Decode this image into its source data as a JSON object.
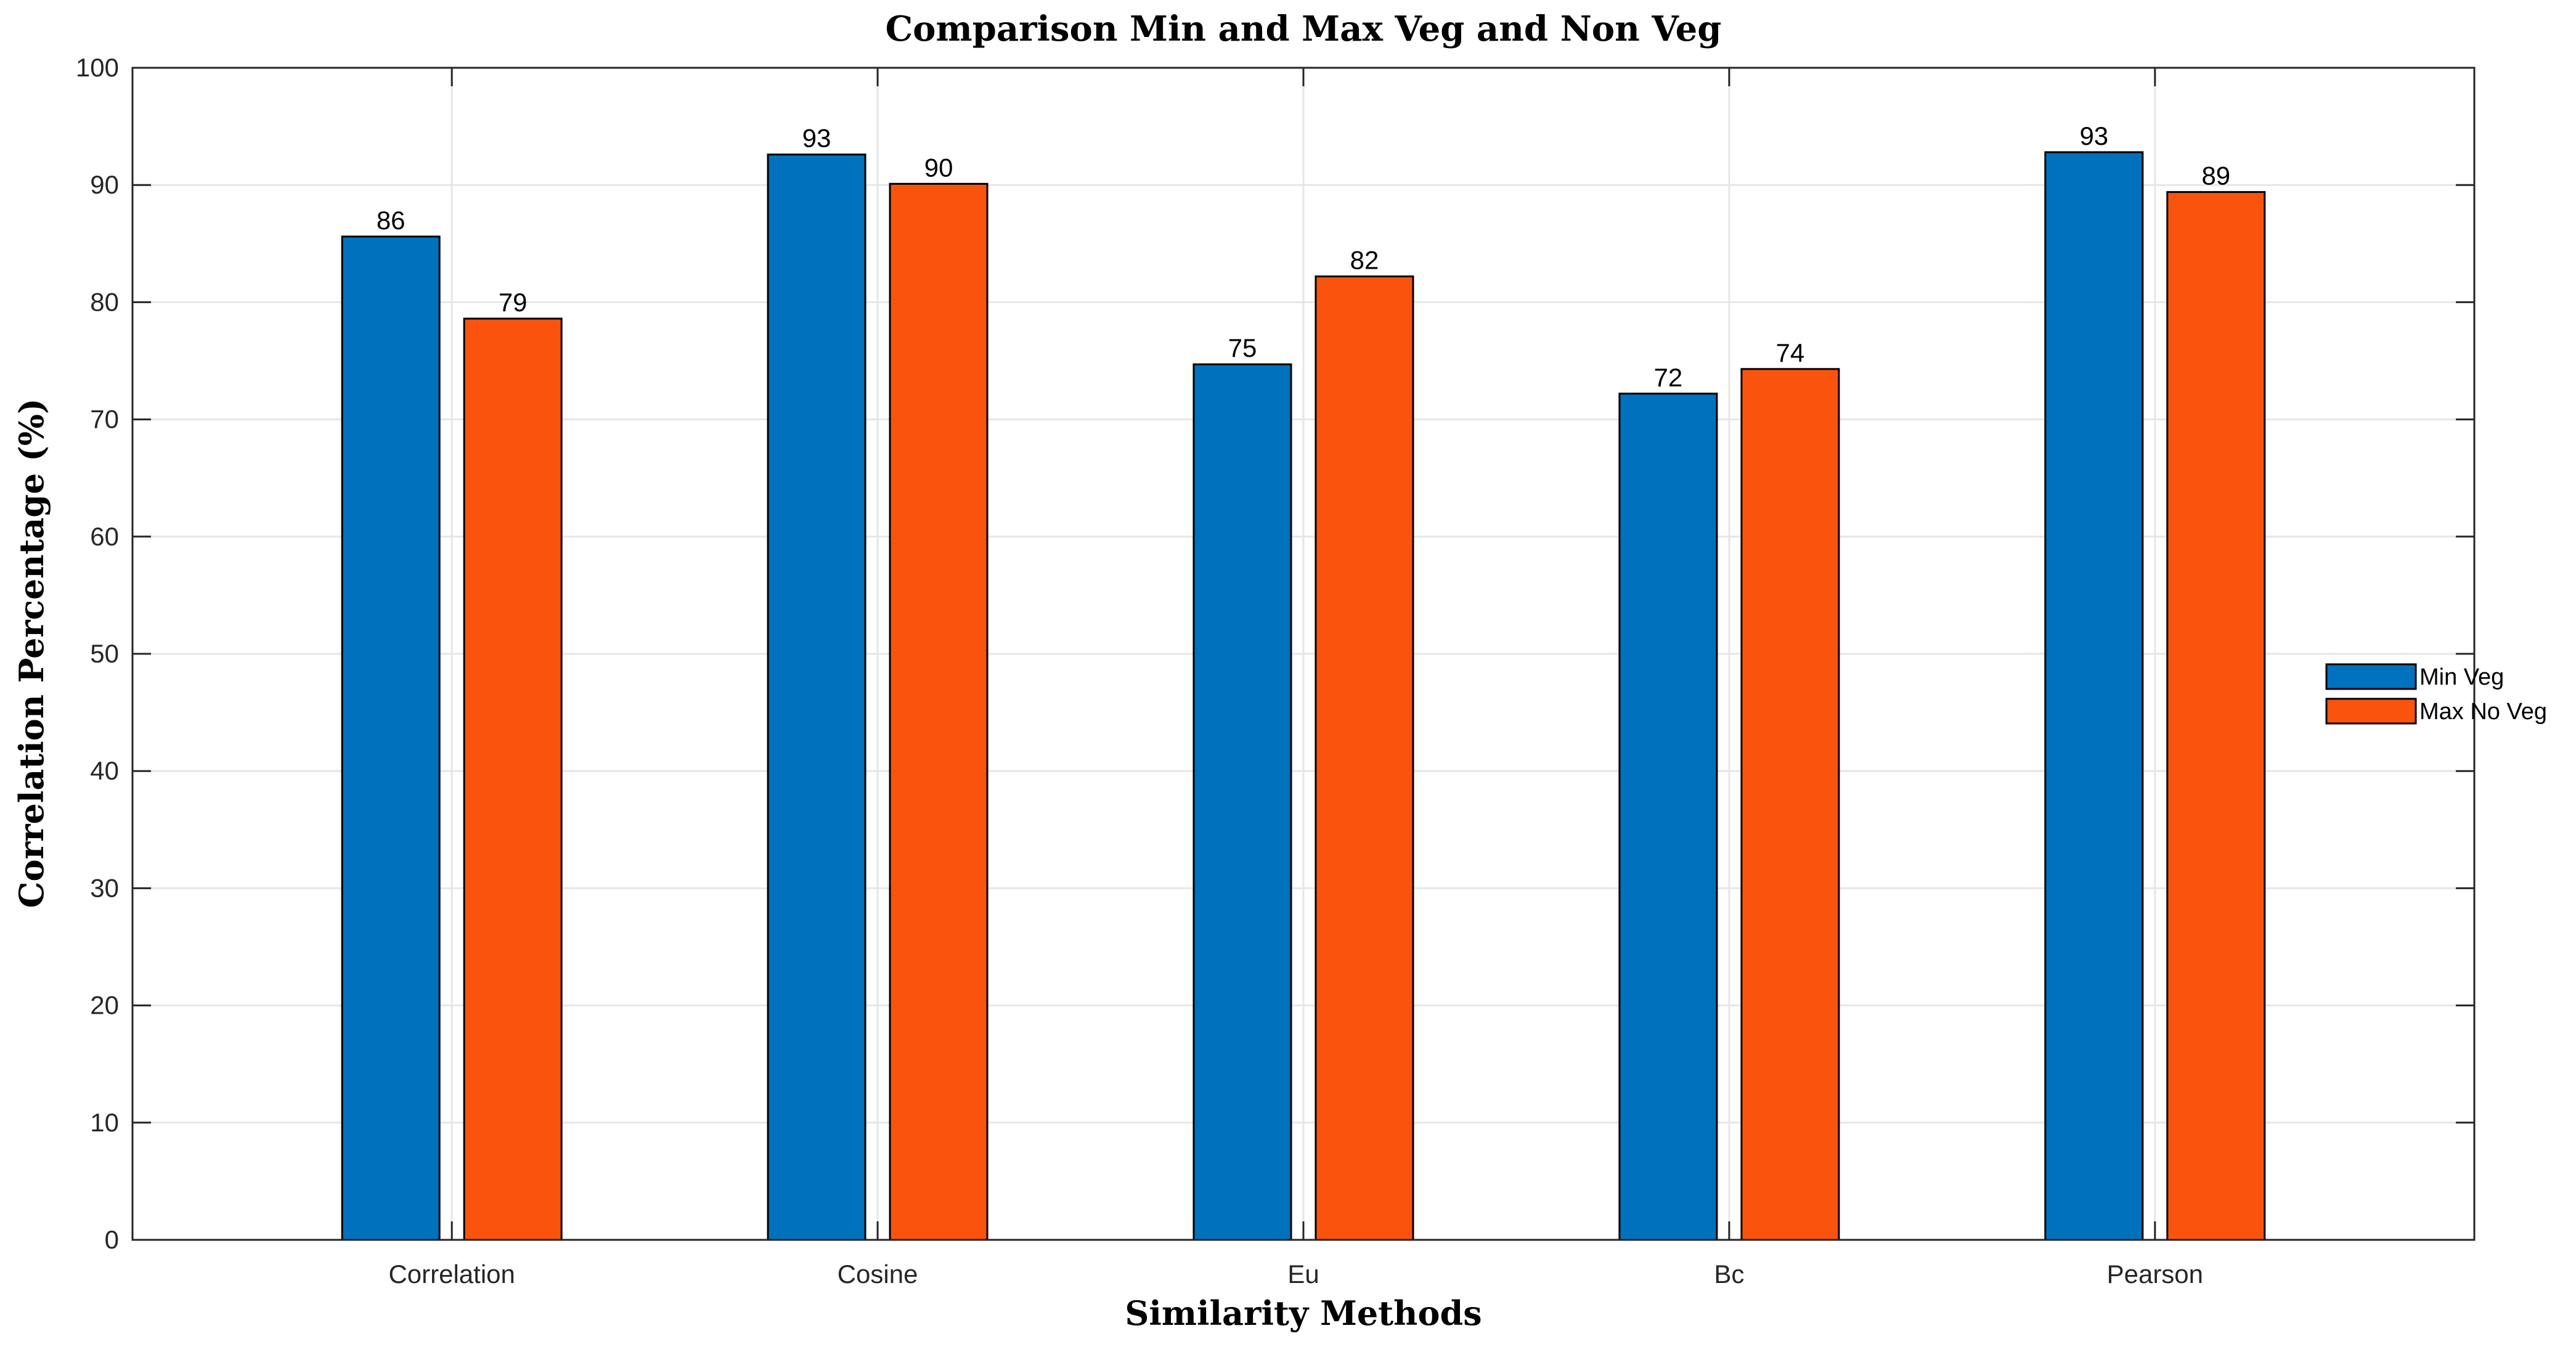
{
  "chart_data": {
    "type": "bar",
    "title": "Comparison Min and Max Veg and Non Veg",
    "xlabel": "Similarity Methods",
    "ylabel": "Correlation Percentage (%)",
    "categories": [
      "Correlation",
      "Cosine",
      "Eu",
      "Bc",
      "Pearson"
    ],
    "series": [
      {
        "name": "Min Veg",
        "color": "#0072BD",
        "values": [
          85.6,
          92.6,
          74.7,
          72.2,
          92.8
        ],
        "labels": [
          "86",
          "93",
          "75",
          "72",
          "93"
        ]
      },
      {
        "name": "Max No Veg",
        "color": "#F9530E",
        "values": [
          78.6,
          90.1,
          82.2,
          74.3,
          89.4
        ],
        "labels": [
          "79",
          "90",
          "82",
          "74",
          "89"
        ]
      }
    ],
    "ylim": [
      0,
      100
    ],
    "yticks": [
      0,
      10,
      20,
      30,
      40,
      50,
      60,
      70,
      80,
      90,
      100
    ],
    "grid": true,
    "legend": "right"
  }
}
